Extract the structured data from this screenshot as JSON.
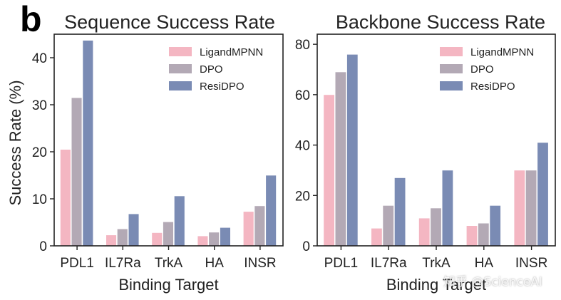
{
  "panel_label": "b",
  "watermark": "知乎 @ScienceAI",
  "colors": {
    "LigandMPNN": "#f4b6c2",
    "DPO": "#b3a9b5",
    "ResiDPO": "#7a8bb4",
    "axis": "#222222"
  },
  "chart_data": [
    {
      "type": "bar",
      "title": "Sequence Success Rate",
      "xlabel": "Binding Target",
      "ylabel": "Success Rate (%)",
      "ylim": [
        0,
        45
      ],
      "yticks": [
        0,
        10,
        20,
        30,
        40
      ],
      "categories": [
        "PDL1",
        "IL7Ra",
        "TrkA",
        "HA",
        "INSR"
      ],
      "series": [
        {
          "name": "LigandMPNN",
          "values": [
            20.5,
            2.3,
            2.8,
            2.1,
            7.3
          ]
        },
        {
          "name": "DPO",
          "values": [
            31.5,
            3.6,
            5.1,
            2.9,
            8.5
          ]
        },
        {
          "name": "ResiDPO",
          "values": [
            43.7,
            6.8,
            10.6,
            3.9,
            15.0
          ]
        }
      ],
      "legend": "top-right",
      "grid": false
    },
    {
      "type": "bar",
      "title": "Backbone Success Rate",
      "xlabel": "Binding Target",
      "ylabel": "",
      "ylim": [
        0,
        84
      ],
      "yticks": [
        0,
        20,
        40,
        60,
        80
      ],
      "categories": [
        "PDL1",
        "IL7Ra",
        "TrkA",
        "HA",
        "INSR"
      ],
      "series": [
        {
          "name": "LigandMPNN",
          "values": [
            60,
            7,
            11,
            8,
            30
          ]
        },
        {
          "name": "DPO",
          "values": [
            69,
            16,
            15,
            9,
            30
          ]
        },
        {
          "name": "ResiDPO",
          "values": [
            76,
            27,
            30,
            16,
            41
          ]
        }
      ],
      "legend": "top-right",
      "grid": false
    }
  ]
}
